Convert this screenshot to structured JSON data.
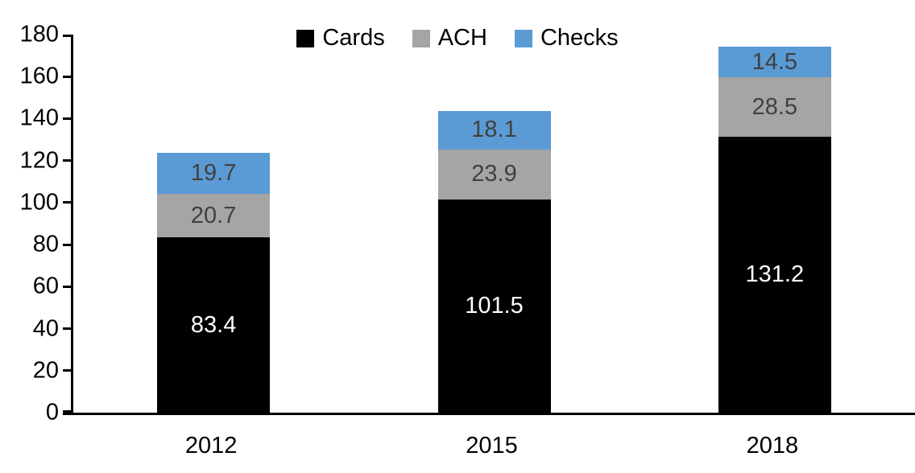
{
  "chart_data": {
    "type": "bar",
    "stacked": true,
    "title": "",
    "xlabel": "",
    "ylabel": "",
    "categories": [
      "2012",
      "2015",
      "2018"
    ],
    "series": [
      {
        "name": "Cards",
        "color": "#000000",
        "label_color": "#ffffff",
        "values": [
          83.4,
          101.5,
          131.2
        ]
      },
      {
        "name": "ACH",
        "color": "#a5a5a5",
        "label_color": "#404040",
        "values": [
          20.7,
          23.9,
          28.5
        ]
      },
      {
        "name": "Checks",
        "color": "#5b9bd5",
        "label_color": "#404040",
        "values": [
          19.7,
          18.1,
          14.5
        ]
      }
    ],
    "ylim": [
      0,
      180
    ],
    "yticks": [
      0,
      20,
      40,
      60,
      80,
      100,
      120,
      140,
      160,
      180
    ],
    "grid": false,
    "legend_position": "top-center",
    "data_labels": "centered-in-segment",
    "axis_color": "#000000"
  }
}
